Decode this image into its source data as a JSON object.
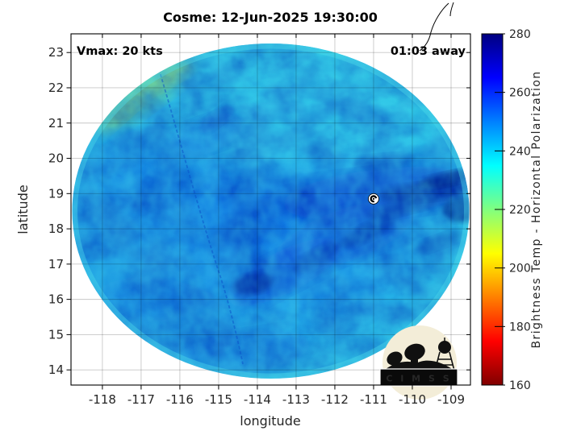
{
  "background": "#ffffff",
  "chart_data": {
    "type": "heatmap",
    "title": "Cosme: 12-Jun-2025 19:30:00",
    "xlabel": "longitude",
    "ylabel": "latitude",
    "xlim": [
      -118.81,
      -108.5
    ],
    "ylim": [
      13.57,
      23.53
    ],
    "xticks": [
      -118,
      -117,
      -116,
      -115,
      -114,
      -113,
      -112,
      -111,
      -110,
      -109
    ],
    "yticks": [
      14,
      15,
      16,
      17,
      18,
      19,
      20,
      21,
      22,
      23
    ],
    "grid": true,
    "annotations": [
      {
        "text": "Vmax: 20 kts",
        "position": "top-left"
      },
      {
        "text": "01:03 away",
        "position": "top-right"
      }
    ],
    "storm_center": {
      "lon": -111.0,
      "lat": 18.85,
      "marker": "tropical-cyclone-symbol"
    },
    "swath": {
      "shape": "circular-microwave-scan",
      "dominant_colors": [
        "#40dce2",
        "#1fa6e6",
        "#0d6cdf",
        "#0845cf",
        "#02228e",
        "#9cdc4e"
      ]
    },
    "colorbar": {
      "label": "Brightness Temp - Horizontal Polarization",
      "min": 160,
      "max": 280,
      "ticks": [
        160,
        180,
        200,
        220,
        240,
        260,
        280
      ],
      "gradient_stops": [
        {
          "value": 160,
          "color": "#800000"
        },
        {
          "value": 175,
          "color": "#ff0000"
        },
        {
          "value": 190,
          "color": "#ff8000"
        },
        {
          "value": 205,
          "color": "#ffff00"
        },
        {
          "value": 220,
          "color": "#80ff80"
        },
        {
          "value": 235,
          "color": "#00ffff"
        },
        {
          "value": 250,
          "color": "#0080ff"
        },
        {
          "value": 265,
          "color": "#0000ff"
        },
        {
          "value": 280,
          "color": "#000080"
        }
      ]
    }
  },
  "logo": {
    "name": "CIMSS",
    "banner_text": "C I M S S"
  }
}
